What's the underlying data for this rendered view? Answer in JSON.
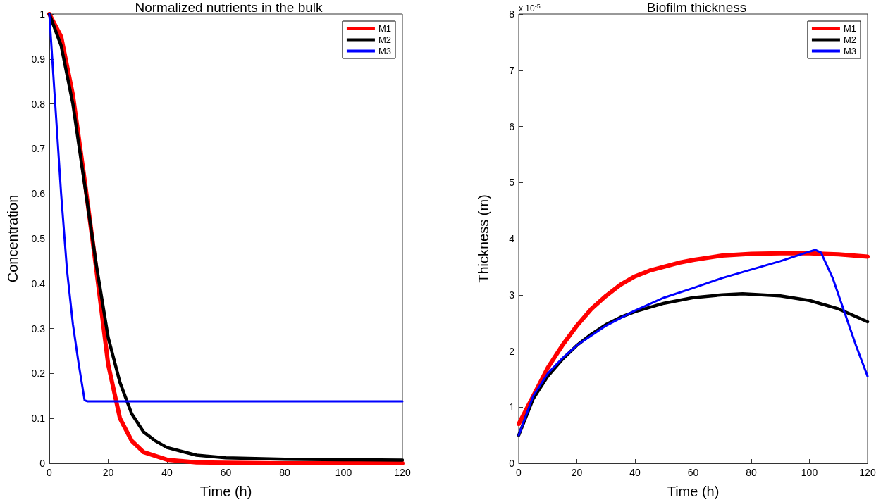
{
  "chart_data": [
    {
      "type": "line",
      "title": "Normalized nutrients in the bulk",
      "xlabel": "Time (h)",
      "ylabel": "Concentration",
      "xlim": [
        0,
        120
      ],
      "xticks": [
        0,
        20,
        40,
        60,
        80,
        100,
        120
      ],
      "ylim": [
        0,
        1
      ],
      "yticks": [
        0,
        0.1,
        0.2,
        0.3,
        0.4,
        0.5,
        0.6,
        0.7,
        0.8,
        0.9,
        1
      ],
      "grid": false,
      "legend": "top right",
      "marker": "none",
      "line_style": "solid",
      "series": [
        {
          "name": "M1",
          "color": "#ff0000",
          "x": [
            0,
            4,
            8,
            12,
            16,
            20,
            24,
            28,
            32,
            40,
            50,
            60,
            80,
            120
          ],
          "values": [
            1,
            0.95,
            0.82,
            0.63,
            0.43,
            0.22,
            0.1,
            0.05,
            0.025,
            0.008,
            0.002,
            0.001,
            0,
            0
          ]
        },
        {
          "name": "M2",
          "color": "#000000",
          "x": [
            0,
            4,
            8,
            12,
            16,
            20,
            24,
            28,
            32,
            36,
            40,
            50,
            60,
            80,
            100,
            120
          ],
          "values": [
            1,
            0.93,
            0.8,
            0.62,
            0.44,
            0.28,
            0.18,
            0.11,
            0.07,
            0.05,
            0.035,
            0.018,
            0.012,
            0.009,
            0.008,
            0.007
          ]
        },
        {
          "name": "M3",
          "color": "#0000ff",
          "x": [
            0,
            2,
            4,
            6,
            8,
            10,
            12,
            13,
            120
          ],
          "values": [
            1,
            0.8,
            0.6,
            0.43,
            0.31,
            0.22,
            0.14,
            0.138,
            0.138
          ]
        }
      ]
    },
    {
      "type": "line",
      "title": "Biofilm thickness",
      "xlabel": "Time (h)",
      "ylabel": "Thickness (m)",
      "annotations": [
        "x 10$^{-5}$"
      ],
      "xlim": [
        0,
        120
      ],
      "xticks": [
        0,
        20,
        40,
        60,
        80,
        100,
        120
      ],
      "ylim": [
        0,
        8
      ],
      "yticks": [
        0,
        1,
        2,
        3,
        4,
        5,
        6,
        7,
        8
      ],
      "grid": false,
      "legend": "top right",
      "marker": "none",
      "line_style": "solid",
      "series": [
        {
          "name": "M1",
          "color": "#ff0000",
          "x": [
            0,
            5,
            10,
            15,
            20,
            25,
            30,
            35,
            40,
            45,
            50,
            55,
            60,
            65,
            70,
            80,
            90,
            100,
            110,
            120
          ],
          "values": [
            0.7,
            1.2,
            1.7,
            2.1,
            2.45,
            2.75,
            2.98,
            3.18,
            3.33,
            3.43,
            3.5,
            3.57,
            3.62,
            3.66,
            3.7,
            3.73,
            3.74,
            3.74,
            3.72,
            3.68
          ]
        },
        {
          "name": "M2",
          "color": "#000000",
          "x": [
            0,
            5,
            10,
            15,
            20,
            25,
            30,
            35,
            40,
            50,
            60,
            70,
            77,
            90,
            100,
            110,
            120
          ],
          "values": [
            0.5,
            1.15,
            1.55,
            1.85,
            2.1,
            2.3,
            2.47,
            2.6,
            2.7,
            2.85,
            2.95,
            3.0,
            3.02,
            2.98,
            2.9,
            2.75,
            2.52
          ]
        },
        {
          "name": "M3",
          "color": "#0000ff",
          "x": [
            0,
            5,
            10,
            15,
            20,
            30,
            40,
            50,
            60,
            70,
            80,
            90,
            100,
            102,
            104,
            108,
            112,
            116,
            120
          ],
          "values": [
            0.5,
            1.2,
            1.6,
            1.87,
            2.1,
            2.45,
            2.72,
            2.95,
            3.12,
            3.3,
            3.45,
            3.6,
            3.77,
            3.8,
            3.75,
            3.3,
            2.7,
            2.1,
            1.55
          ]
        }
      ]
    }
  ]
}
